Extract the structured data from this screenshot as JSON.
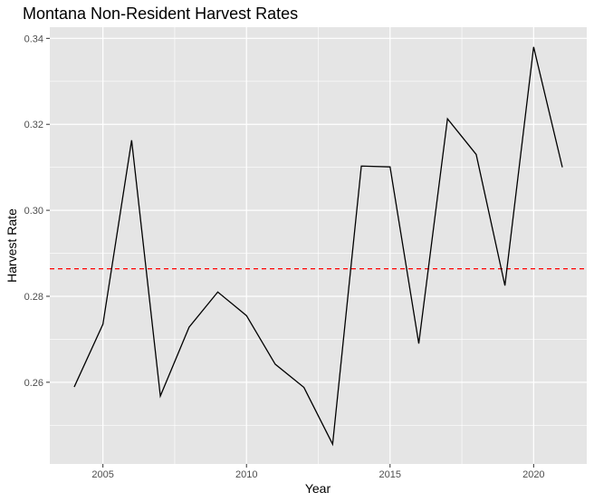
{
  "chart_data": {
    "type": "line",
    "title": "Montana Non-Resident Harvest Rates",
    "xlabel": "Year",
    "ylabel": "Harvest Rate",
    "x": [
      2004,
      2005,
      2006,
      2007,
      2008,
      2009,
      2010,
      2011,
      2012,
      2013,
      2014,
      2015,
      2016,
      2017,
      2018,
      2019,
      2020,
      2021
    ],
    "series": [
      {
        "values": [
          0.2589,
          0.2735,
          0.3163,
          0.2568,
          0.2728,
          0.281,
          0.2755,
          0.2642,
          0.2588,
          0.2456,
          0.3103,
          0.3101,
          0.269,
          0.3213,
          0.313,
          0.2825,
          0.338,
          0.31
        ]
      }
    ],
    "reference_line": {
      "y": 0.2864,
      "style": "dashed"
    },
    "xlim": [
      2003.15,
      2021.85
    ],
    "ylim": [
      0.241,
      0.3426
    ],
    "xticks": [
      "2005",
      "2010",
      "2015",
      "2020"
    ],
    "yticks": [
      "0.26",
      "0.28",
      "0.30",
      "0.32",
      "0.34"
    ],
    "grid": true,
    "colors": {
      "line": "#000000",
      "reference": "#ff0000",
      "panel_background": "#e5e5e5",
      "grid": "#ffffff"
    }
  }
}
